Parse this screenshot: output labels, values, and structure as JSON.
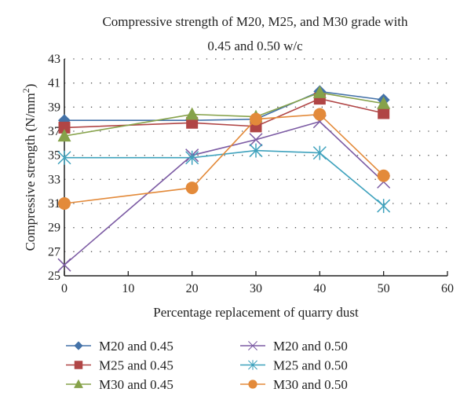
{
  "chart_data": {
    "type": "line",
    "title": [
      "Compressive strength of M20, M25, and M30 grade with",
      "0.45 and 0.50 w/c"
    ],
    "xlabel": "Percentage replacement of quarry dust",
    "ylabel": "Compressive strength (N/mm",
    "ylabel_sup": "2",
    "ylabel_end": ")",
    "xlim": [
      0,
      60
    ],
    "ylim": [
      25,
      43
    ],
    "xticks": [
      0,
      10,
      20,
      30,
      40,
      50,
      60
    ],
    "yticks": [
      25,
      27,
      29,
      31,
      33,
      35,
      37,
      39,
      41,
      43
    ],
    "grid": "horizontal-dotted",
    "legend_position": "bottom",
    "x": [
      0,
      20,
      30,
      40,
      50
    ],
    "series": [
      {
        "name": "M20 and 0.45",
        "color": "#4472a8",
        "marker": "diamond",
        "values": [
          37.9,
          37.9,
          38.0,
          40.3,
          39.6
        ]
      },
      {
        "name": "M25 and 0.45",
        "color": "#b04545",
        "marker": "square",
        "values": [
          37.3,
          37.7,
          37.4,
          39.7,
          38.5
        ]
      },
      {
        "name": "M30 and 0.45",
        "color": "#86a24a",
        "marker": "triangle",
        "values": [
          36.6,
          38.4,
          38.2,
          40.2,
          39.3
        ]
      },
      {
        "name": "M20 and 0.50",
        "color": "#7b5aa3",
        "marker": "x",
        "values": [
          25.9,
          35.0,
          36.3,
          37.8,
          32.8
        ]
      },
      {
        "name": "M25 and 0.50",
        "color": "#3fa2bd",
        "marker": "star",
        "values": [
          34.8,
          34.8,
          35.4,
          35.2,
          30.8
        ]
      },
      {
        "name": "M30 and 0.50",
        "color": "#e38a3a",
        "marker": "circle",
        "values": [
          31.0,
          32.3,
          38.0,
          38.4,
          33.3
        ]
      }
    ]
  }
}
